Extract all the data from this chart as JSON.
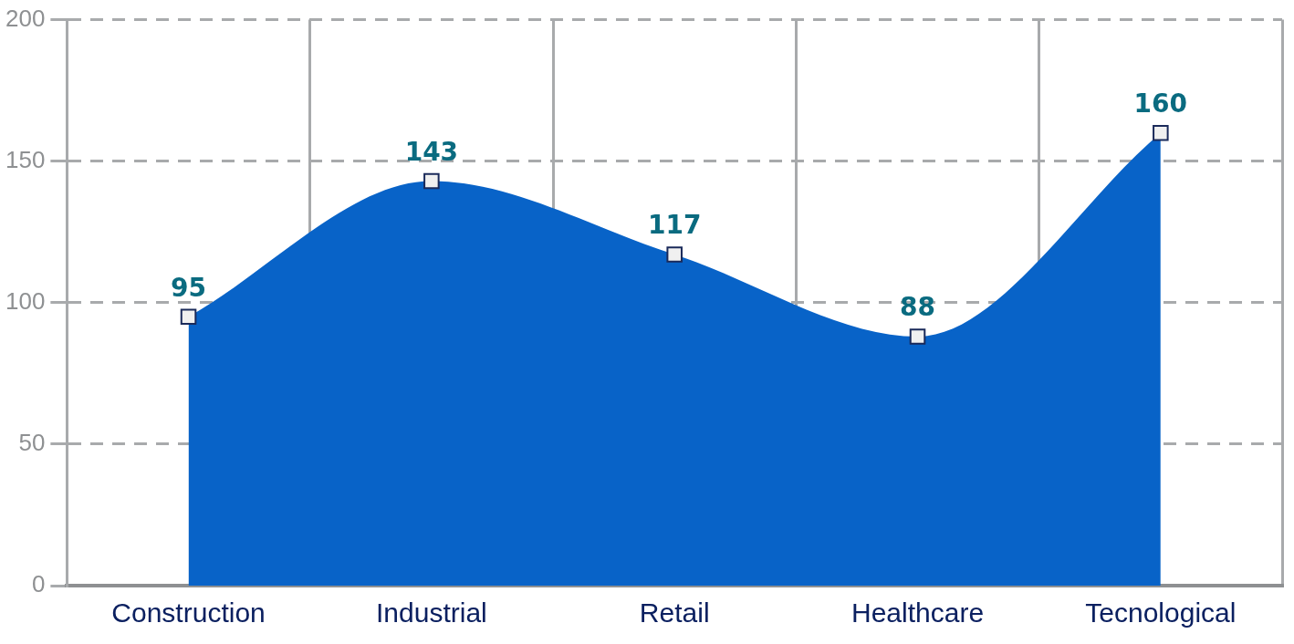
{
  "chart_data": {
    "type": "area",
    "categories": [
      "Construction",
      "Industrial",
      "Retail",
      "Healthcare",
      "Tecnological"
    ],
    "values": [
      95,
      143,
      117,
      88,
      160
    ],
    "color": "#0863c8",
    "ylim": [
      0,
      200
    ],
    "yticks": [
      0,
      50,
      100,
      150,
      200
    ],
    "value_labels": [
      "95",
      "143",
      "117",
      "88",
      "160"
    ],
    "grid": true,
    "marker": "square"
  }
}
